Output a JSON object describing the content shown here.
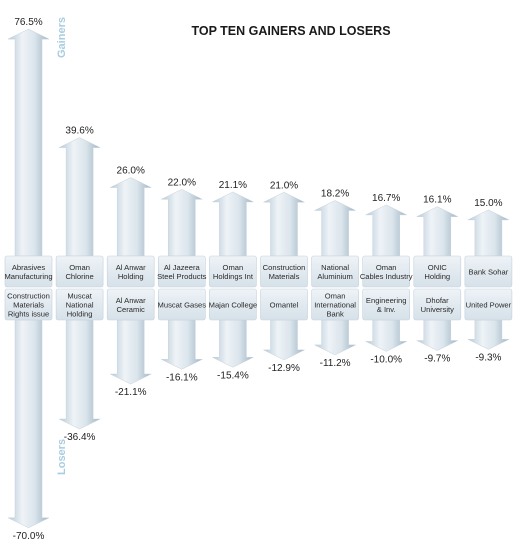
{
  "chart_data": {
    "type": "bar",
    "title": "TOP TEN GAINERS AND LOSERS",
    "gainers_label": "Gainers",
    "losers_label": "Losers",
    "unit": "%",
    "colors": {
      "arrow_light": "#dfe9f0",
      "arrow_mid": "#b9ccd9",
      "arrow_dark": "#93aabb",
      "label_box": "#e4ecf2",
      "title": "#1a1a1a",
      "side_label": "#a9cde0"
    },
    "gainers": [
      {
        "name": [
          "Abrasives",
          "Manufacturing"
        ],
        "value": 76.5,
        "label": "76.5%"
      },
      {
        "name": [
          "Oman",
          "Chlorine"
        ],
        "value": 39.6,
        "label": "39.6%"
      },
      {
        "name": [
          "Al Anwar",
          "Holding"
        ],
        "value": 26.0,
        "label": "26.0%"
      },
      {
        "name": [
          "Al Jazeera",
          "Steel Products"
        ],
        "value": 22.0,
        "label": "22.0%"
      },
      {
        "name": [
          "Oman",
          "Holdings Int"
        ],
        "value": 21.1,
        "label": "21.1%"
      },
      {
        "name": [
          "Construction",
          "Materials"
        ],
        "value": 21.0,
        "label": "21.0%"
      },
      {
        "name": [
          "National",
          "Aluminium"
        ],
        "value": 18.2,
        "label": "18.2%"
      },
      {
        "name": [
          "Oman",
          "Cables Industry"
        ],
        "value": 16.7,
        "label": "16.7%"
      },
      {
        "name": [
          "ONIC",
          "Holding"
        ],
        "value": 16.1,
        "label": "16.1%"
      },
      {
        "name": [
          "Bank Sohar"
        ],
        "value": 15.0,
        "label": "15.0%"
      }
    ],
    "losers": [
      {
        "name": [
          "Construction",
          "Materials",
          "Rights issue"
        ],
        "value": -70.0,
        "label": "-70.0%"
      },
      {
        "name": [
          "Muscat",
          "National",
          "Holding"
        ],
        "value": -36.4,
        "label": "-36.4%"
      },
      {
        "name": [
          "Al Anwar",
          "Ceramic"
        ],
        "value": -21.1,
        "label": "-21.1%"
      },
      {
        "name": [
          "Muscat Gases"
        ],
        "value": -16.1,
        "label": "-16.1%"
      },
      {
        "name": [
          "Majan College"
        ],
        "value": -15.4,
        "label": "-15.4%"
      },
      {
        "name": [
          "Omantel"
        ],
        "value": -12.9,
        "label": "-12.9%"
      },
      {
        "name": [
          "Oman",
          "International",
          "Bank"
        ],
        "value": -11.2,
        "label": "-11.2%"
      },
      {
        "name": [
          "Engineering",
          "& Inv."
        ],
        "value": -10.0,
        "label": "-10.0%"
      },
      {
        "name": [
          "Dhofar",
          "University"
        ],
        "value": -9.7,
        "label": "-9.7%"
      },
      {
        "name": [
          "United Power"
        ],
        "value": -9.3,
        "label": "-9.3%"
      }
    ]
  }
}
